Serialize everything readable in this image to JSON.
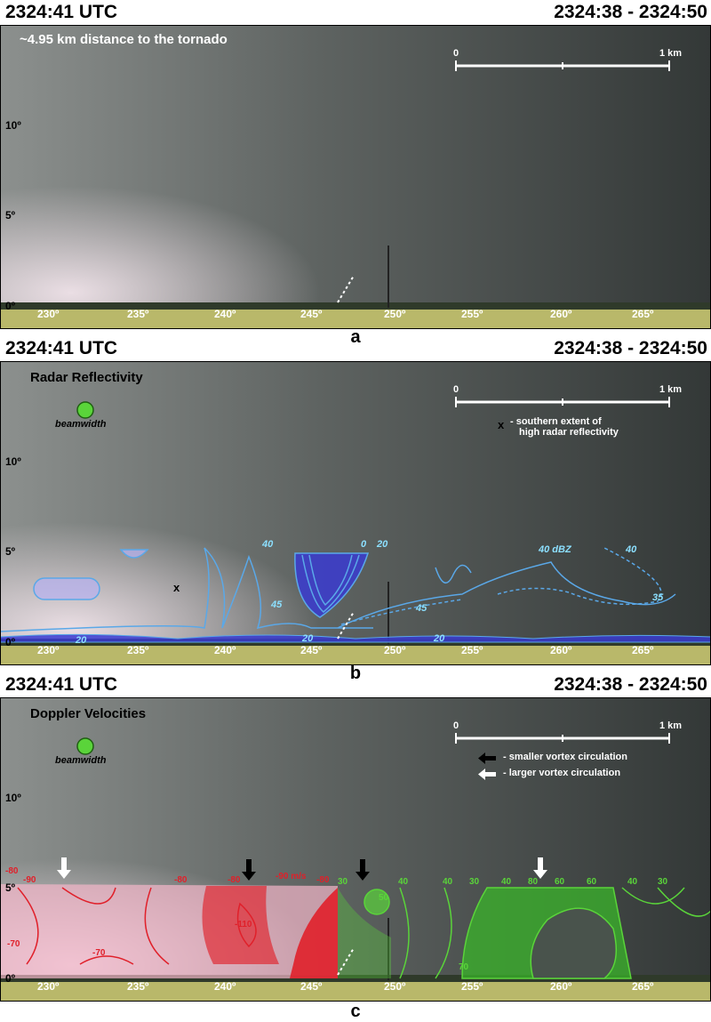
{
  "panels": [
    {
      "time": "2324:41 UTC",
      "range": "2324:38 - 2324:50",
      "letter": "a",
      "note": "~4.95 km distance to the tornado",
      "scale": {
        "start": "0",
        "end": "1 km"
      },
      "elev_ticks": [
        "10º",
        "5º",
        "0º"
      ],
      "az_ticks": [
        "230º",
        "235º",
        "240º",
        "245º",
        "250º",
        "255º",
        "260º",
        "265º"
      ]
    },
    {
      "time": "2324:41 UTC",
      "range": "2324:38 - 2324:50",
      "letter": "b",
      "title": "Radar Reflectivity",
      "beamwidth": "beamwidth",
      "scale": {
        "start": "0",
        "end": "1 km"
      },
      "legend_marker": "x",
      "legend_line1": "- southern extent of",
      "legend_line2": "high radar reflectivity",
      "elev_ticks": [
        "10º",
        "5º",
        "0º"
      ],
      "az_ticks": [
        "230º",
        "235º",
        "240º",
        "245º",
        "250º",
        "255º",
        "260º",
        "265º"
      ],
      "contour_labels": [
        "40",
        "0",
        "20",
        "45",
        "45",
        "40 dBZ",
        "40",
        "35",
        "20",
        "20",
        "20"
      ]
    },
    {
      "time": "2324:41 UTC",
      "range": "2324:38 - 2324:50",
      "letter": "c",
      "title": "Doppler Velocities",
      "beamwidth": "beamwidth",
      "scale": {
        "start": "0",
        "end": "1 km"
      },
      "legend_small": "- smaller vortex circulation",
      "legend_large": "- larger vortex circulation",
      "elev_ticks": [
        "10º",
        "5º",
        "0º"
      ],
      "az_ticks": [
        "230º",
        "235º",
        "240º",
        "245º",
        "250º",
        "255º",
        "260º",
        "265º"
      ],
      "neg_labels": [
        "-80",
        "-90",
        "-80",
        "-80",
        "-90 m/s",
        "-80",
        "-110",
        "-70",
        "-70"
      ],
      "pos_labels": [
        "30",
        "40",
        "50",
        "40",
        "30",
        "40",
        "80",
        "60",
        "60",
        "40",
        "30",
        "70"
      ]
    }
  ],
  "colors": {
    "sky_dark": "#3a3f3e",
    "sky_light": "#8d918f",
    "reflectivity": "#5aa8e8",
    "reflectivity_fill": "#3a3bd0",
    "neg_velocity": "#e0202a",
    "pos_velocity": "#5ad43a",
    "beam": "#5ad43a"
  }
}
